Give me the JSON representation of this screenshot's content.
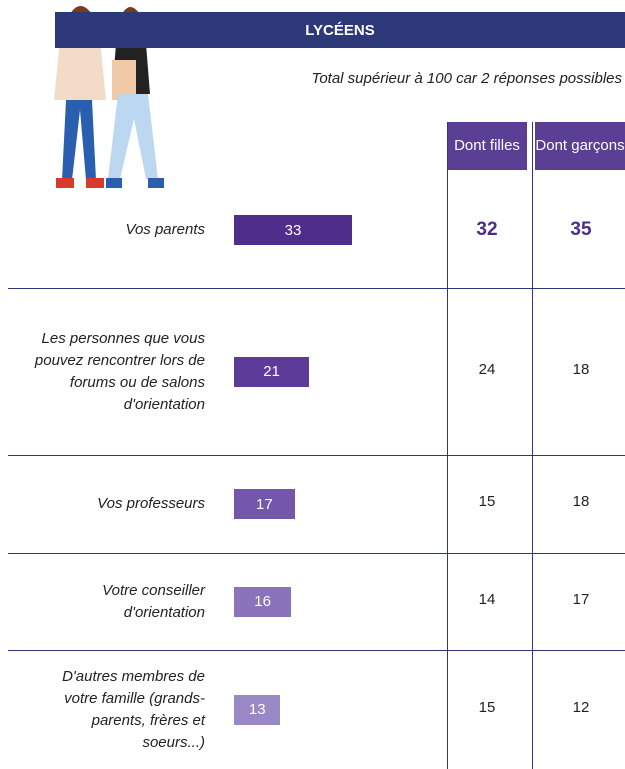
{
  "header": {
    "title": "LYCÉENS"
  },
  "note": "Total supérieur à 100 car 2 réponses possibles",
  "columns": {
    "girls": "Dont filles",
    "boys": "Dont garçons"
  },
  "max": 33,
  "rows": [
    {
      "label": "Vos parents",
      "total": 33,
      "girls": 32,
      "boys": 35,
      "color": "#4f2d8a",
      "emphasis": true
    },
    {
      "label": "Les personnes que vous pouvez rencontrer lors de forums ou de salons d'orientation",
      "total": 21,
      "girls": 24,
      "boys": 18,
      "color": "#5d3b98",
      "emphasis": false
    },
    {
      "label": "Vos professeurs",
      "total": 17,
      "girls": 15,
      "boys": 18,
      "color": "#7457aa",
      "emphasis": false
    },
    {
      "label": "Votre conseiller d'orientation",
      "total": 16,
      "girls": 14,
      "boys": 17,
      "color": "#8b73bb",
      "emphasis": false
    },
    {
      "label": "D'autres membres de votre famille (grands-parents, frères et soeurs...)",
      "total": 13,
      "girls": 15,
      "boys": 12,
      "color": "#9a87c5",
      "emphasis": false
    }
  ]
}
